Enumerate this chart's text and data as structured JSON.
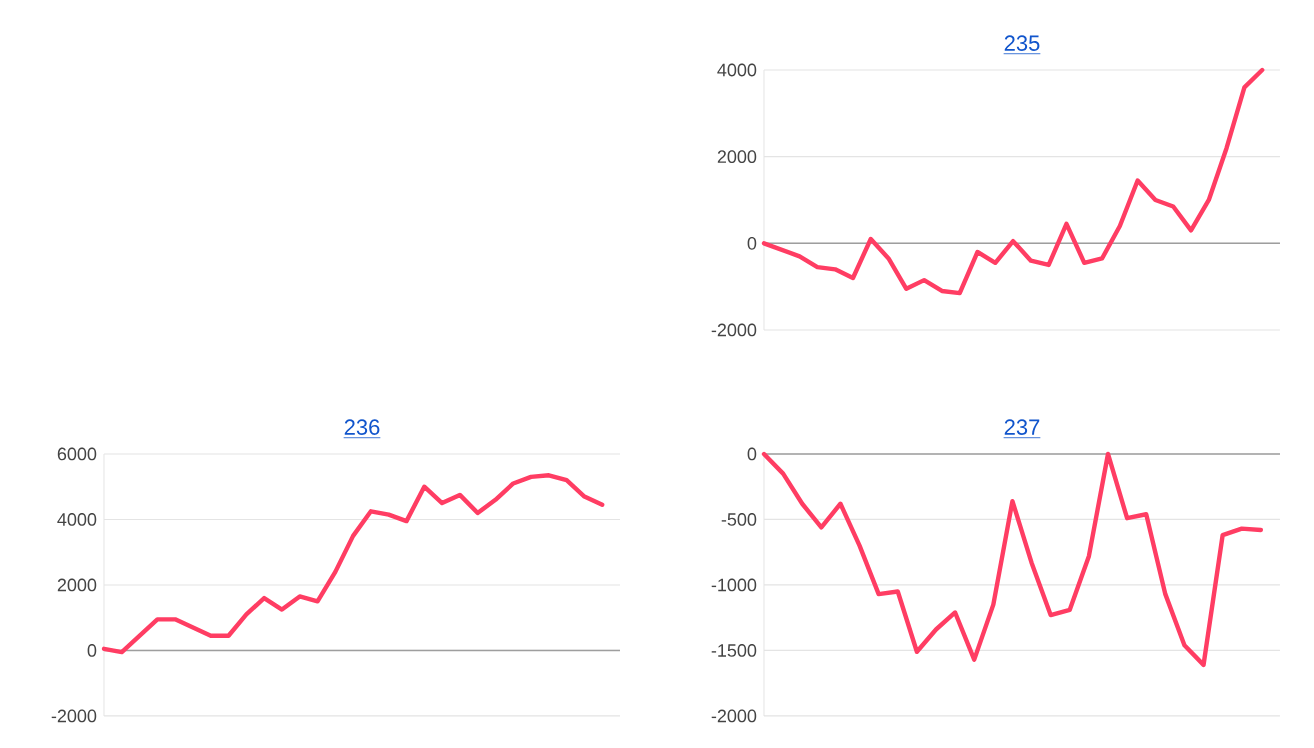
{
  "chart_data": [
    {
      "type": "line",
      "title": "235",
      "categories": [
        null,
        null,
        null,
        null,
        null,
        null,
        null,
        null,
        null,
        null,
        null,
        null,
        null,
        null,
        null,
        null,
        null,
        null,
        null,
        null,
        null,
        null,
        null,
        null,
        null,
        null,
        null,
        null,
        null
      ],
      "values": [
        0,
        -150,
        -300,
        -550,
        -600,
        -800,
        100,
        -350,
        -1050,
        -850,
        -1100,
        -1150,
        -200,
        -450,
        50,
        -400,
        -500,
        450,
        -450,
        -350,
        400,
        1450,
        1000,
        850,
        300,
        1000,
        2200,
        3600,
        4000
      ],
      "color": "#ff3d63",
      "ylim": [
        -2000,
        4000
      ],
      "yticks": [
        -2000,
        0,
        2000,
        4000
      ],
      "grid": "y",
      "tick_labels": "y"
    },
    {
      "type": "line",
      "title": "236",
      "categories": [
        null,
        null,
        null,
        null,
        null,
        null,
        null,
        null,
        null,
        null,
        null,
        null,
        null,
        null,
        null,
        null,
        null,
        null,
        null,
        null,
        null,
        null,
        null,
        null,
        null,
        null,
        null,
        null,
        null
      ],
      "values": [
        50,
        -50,
        450,
        950,
        950,
        700,
        450,
        450,
        1100,
        1600,
        1250,
        1650,
        1500,
        2400,
        3500,
        4250,
        4150,
        3950,
        5000,
        4500,
        4750,
        4200,
        4600,
        5100,
        5300,
        5350,
        5200,
        4700,
        4450
      ],
      "color": "#ff3d63",
      "ylim": [
        -2000,
        6000
      ],
      "yticks": [
        -2000,
        0,
        2000,
        4000,
        6000
      ],
      "grid": "y",
      "tick_labels": "y"
    },
    {
      "type": "line",
      "title": "237",
      "categories": [
        null,
        null,
        null,
        null,
        null,
        null,
        null,
        null,
        null,
        null,
        null,
        null,
        null,
        null,
        null,
        null,
        null,
        null,
        null,
        null,
        null,
        null,
        null,
        null,
        null,
        null,
        null
      ],
      "values": [
        0,
        -150,
        -380,
        -560,
        -380,
        -700,
        -1070,
        -1050,
        -1510,
        -1340,
        -1210,
        -1570,
        -1150,
        -360,
        -830,
        -1230,
        -1190,
        -780,
        0,
        -490,
        -460,
        -1070,
        -1460,
        -1610,
        -620,
        -570,
        -580
      ],
      "color": "#ff3d63",
      "ylim": [
        -2000,
        0
      ],
      "yticks": [
        -2000,
        -1500,
        -1000,
        -500,
        0
      ],
      "grid": "y",
      "tick_labels": "y"
    }
  ]
}
